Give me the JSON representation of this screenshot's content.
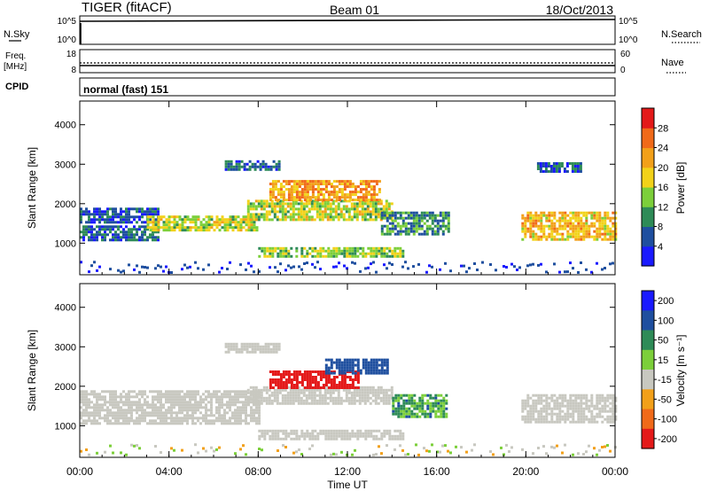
{
  "header": {
    "radar": "TIGER (fitACF)",
    "beam": "Beam 01",
    "date": "18/Oct/2013"
  },
  "strip_nsky": {
    "left_label": "N.Sky",
    "right_label": "N.Search",
    "left_ticks": [
      "10^5",
      "10^0"
    ],
    "right_ticks": [
      "10^5",
      "10^0"
    ]
  },
  "strip_freq": {
    "left_label": "Freq.",
    "left_unit": "[MHz]",
    "right_label": "Nave",
    "left_ticks": [
      "18",
      "8"
    ],
    "right_ticks": [
      "60",
      "0"
    ]
  },
  "strip_cpid": {
    "label": "CPID",
    "value": "normal (fast) 151"
  },
  "colors": {
    "power": [
      "#1a1aff",
      "#1f4f9f",
      "#2e8b57",
      "#7ccf3a",
      "#f2d21a",
      "#f2a01a",
      "#f06a1a",
      "#e41a1a"
    ],
    "velocity": [
      "#e41a1a",
      "#f06a1a",
      "#f2a01a",
      "#c8c8c0",
      "#7ccf3a",
      "#2e8b57",
      "#1f4f9f",
      "#1a1aff"
    ]
  },
  "chart_data": [
    {
      "type": "heatmap",
      "name": "power-panel",
      "ylabel": "Slant Range [km]",
      "x_range_hours": [
        0,
        24
      ],
      "ylim": [
        200,
        4600
      ],
      "yticks": [
        "1000",
        "2000",
        "3000",
        "4000"
      ],
      "colorbar_label": "Power [dB]",
      "colorbar_ticks": [
        "4",
        "8",
        "12",
        "16",
        "20",
        "24",
        "28"
      ],
      "colorbar_range": [
        0,
        32
      ],
      "echo_regions": [
        {
          "t0": 0.0,
          "t1": 3.5,
          "r0": 1500,
          "r1": 1900,
          "v": 6
        },
        {
          "t0": 0.0,
          "t1": 3.5,
          "r0": 1050,
          "r1": 1450,
          "v": 7
        },
        {
          "t0": 3.0,
          "t1": 8.0,
          "r0": 1350,
          "r1": 1700,
          "v": 16
        },
        {
          "t0": 7.5,
          "t1": 14.0,
          "r0": 1600,
          "r1": 2100,
          "v": 16
        },
        {
          "t0": 8.5,
          "t1": 13.5,
          "r0": 2100,
          "r1": 2600,
          "v": 22
        },
        {
          "t0": 6.5,
          "t1": 9.0,
          "r0": 2850,
          "r1": 3100,
          "v": 7
        },
        {
          "t0": 8.0,
          "t1": 14.5,
          "r0": 650,
          "r1": 900,
          "v": 14
        },
        {
          "t0": 13.5,
          "t1": 16.5,
          "r0": 1200,
          "r1": 1800,
          "v": 10
        },
        {
          "t0": 19.8,
          "t1": 24.0,
          "r0": 1100,
          "r1": 1800,
          "v": 20
        },
        {
          "t0": 20.5,
          "t1": 22.5,
          "r0": 2800,
          "r1": 3050,
          "v": 6
        }
      ]
    },
    {
      "type": "heatmap",
      "name": "velocity-panel",
      "xlabel": "Time UT",
      "ylabel": "Slant Range [km]",
      "x_range_hours": [
        0,
        24
      ],
      "xticks": [
        "00:00",
        "04:00",
        "08:00",
        "12:00",
        "16:00",
        "20:00",
        "00:00"
      ],
      "ylim": [
        200,
        4600
      ],
      "yticks": [
        "1000",
        "2000",
        "3000",
        "4000"
      ],
      "colorbar_label": "Velocity [m s⁻¹]",
      "colorbar_ticks": [
        "200",
        "100",
        "50",
        "15",
        "-15",
        "-50",
        "-100",
        "-200"
      ],
      "echo_regions": [
        {
          "t0": 0.0,
          "t1": 8.0,
          "r0": 1050,
          "r1": 1900,
          "v": 0
        },
        {
          "t0": 7.5,
          "t1": 14.0,
          "r0": 1550,
          "r1": 2000,
          "v": 0
        },
        {
          "t0": 8.0,
          "t1": 14.5,
          "r0": 650,
          "r1": 900,
          "v": 0
        },
        {
          "t0": 8.5,
          "t1": 12.5,
          "r0": 1950,
          "r1": 2400,
          "v": -150
        },
        {
          "t0": 11.0,
          "t1": 13.8,
          "r0": 2300,
          "r1": 2700,
          "v": 150
        },
        {
          "t0": 14.0,
          "t1": 16.5,
          "r0": 1200,
          "r1": 1800,
          "v": 60
        },
        {
          "t0": 19.8,
          "t1": 24.0,
          "r0": 1100,
          "r1": 1800,
          "v": 0
        },
        {
          "t0": 6.5,
          "t1": 9.0,
          "r0": 2850,
          "r1": 3100,
          "v": 0
        }
      ]
    }
  ]
}
